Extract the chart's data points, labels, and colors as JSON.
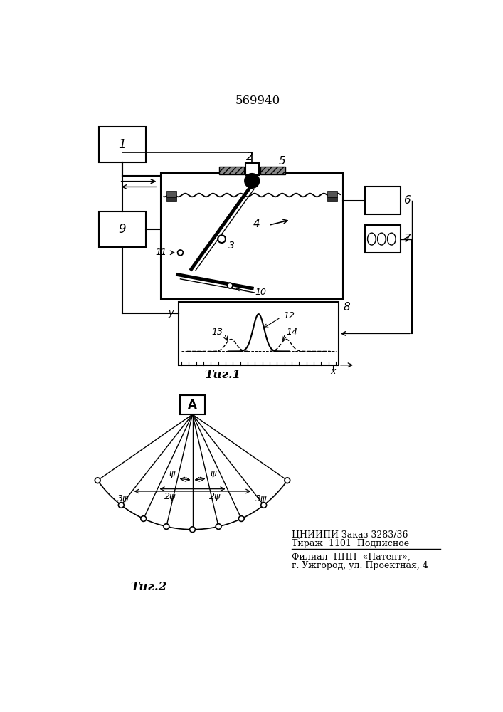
{
  "title": "569940",
  "fig1_caption": "Τиг.1",
  "fig2_caption": "Τиг.2",
  "bg_color": "#ffffff",
  "line_color": "#000000",
  "inst_line1": "ЦНИИПИ Заказ 3283/36",
  "inst_line2": "Тираж  1101  Подписное",
  "inst_line3": "Филиал  ППП  «Патент»,",
  "inst_line4": "г. Ужгород, ул. Проектная, 4"
}
